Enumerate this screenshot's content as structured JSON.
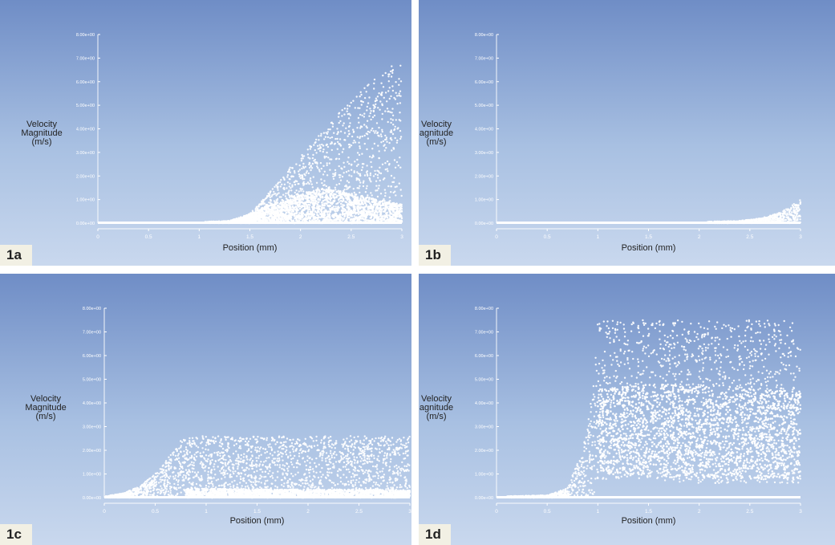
{
  "colors": {
    "background_top": "#6f8dc6",
    "background_bottom": "#c9d8ee",
    "points": "#ffffff",
    "label_box": "#f2f0e4"
  },
  "chart_data": [
    {
      "panel": "1a",
      "type": "scatter",
      "xlabel": "Position (mm)",
      "ylabel": [
        "Velocity",
        "Magnitude",
        "(m/s)"
      ],
      "xticks": [
        "0",
        "0.5",
        "1",
        "1.5",
        "2",
        "2.5",
        "3"
      ],
      "yticks": [
        "0.00e+00",
        "1.00e+00",
        "2.00e+00",
        "3.00e+00",
        "4.00e+00",
        "5.00e+00",
        "6.00e+00",
        "7.00e+00",
        "8.00e+00"
      ],
      "xlim": [
        0,
        3
      ],
      "ylim": [
        0,
        8
      ],
      "series_envelope": {
        "x": [
          0,
          1.0,
          1.3,
          1.5,
          1.75,
          2.0,
          2.25,
          2.5,
          2.75,
          2.95,
          3.0
        ],
        "upper": [
          0.05,
          0.05,
          0.1,
          0.4,
          1.6,
          2.9,
          4.1,
          5.2,
          6.2,
          6.9,
          6.9
        ],
        "lower": [
          0,
          0,
          0,
          0,
          0,
          0,
          0,
          0,
          0,
          0,
          0
        ]
      },
      "dense_band": {
        "x": [
          1.4,
          1.7,
          2.0,
          2.25,
          2.5,
          2.75,
          3.0
        ],
        "upper": [
          0.2,
          0.8,
          1.3,
          1.5,
          1.3,
          1.0,
          0.8
        ]
      }
    },
    {
      "panel": "1b",
      "type": "scatter",
      "xlabel": "Position (mm)",
      "ylabel": [
        "Velocity",
        "agnitude",
        "(m/s)"
      ],
      "xticks": [
        "0",
        "0.5",
        "1",
        "1.5",
        "2",
        "2.5",
        "3"
      ],
      "yticks": [
        "0.00e+00",
        "1.00e+00",
        "2.00e+00",
        "3.00e+00",
        "4.00e+00",
        "5.00e+00",
        "6.00e+00",
        "7.00e+00",
        "8.00e+00"
      ],
      "xlim": [
        0,
        3
      ],
      "ylim": [
        0,
        8
      ],
      "series_envelope": {
        "x": [
          0,
          2.0,
          2.4,
          2.6,
          2.8,
          2.95,
          3.0
        ],
        "upper": [
          0.05,
          0.05,
          0.1,
          0.2,
          0.45,
          0.85,
          1.0
        ],
        "lower": [
          0,
          0,
          0,
          0,
          0,
          0,
          0
        ]
      }
    },
    {
      "panel": "1c",
      "type": "scatter",
      "xlabel": "Position (mm)",
      "ylabel": [
        "Velocity",
        "Magnitude",
        "(m/s)"
      ],
      "xticks": [
        "0",
        "0.5",
        "1",
        "1.5",
        "2",
        "2.5",
        "3"
      ],
      "yticks": [
        "0.00e+00",
        "1.00e+00",
        "2.00e+00",
        "3.00e+00",
        "4.00e+00",
        "5.00e+00",
        "6.00e+00",
        "7.00e+00",
        "8.00e+00"
      ],
      "xlim": [
        0,
        3
      ],
      "ylim": [
        0,
        8
      ],
      "series_envelope": {
        "x": [
          0,
          0.2,
          0.35,
          0.5,
          0.65,
          0.75,
          0.8,
          1.5,
          2.5,
          3.0
        ],
        "upper": [
          0.05,
          0.2,
          0.5,
          1.0,
          1.8,
          2.4,
          2.6,
          2.6,
          2.6,
          2.6
        ],
        "lower": [
          0,
          0,
          0,
          0,
          0,
          0,
          0,
          0,
          0,
          0
        ]
      },
      "dense_band": {
        "x": [
          0.8,
          1.5,
          2.5,
          3.0
        ],
        "upper": [
          0.4,
          0.35,
          0.35,
          0.3
        ]
      }
    },
    {
      "panel": "1d",
      "type": "scatter",
      "xlabel": "Position (mm)",
      "ylabel": [
        "Velocity",
        "agnitude",
        "(m/s)"
      ],
      "xticks": [
        "0",
        "0.5",
        "1",
        "1.5",
        "2",
        "2.5",
        "3"
      ],
      "yticks": [
        "0.00e+00",
        "1.00e+00",
        "2.00e+00",
        "3.00e+00",
        "4.00e+00",
        "5.00e+00",
        "6.00e+00",
        "7.00e+00",
        "8.00e+00"
      ],
      "xlim": [
        0,
        3
      ],
      "ylim": [
        0,
        8
      ],
      "series_envelope": {
        "x": [
          0,
          0.5,
          0.7,
          0.85,
          0.95,
          1.0,
          2.0,
          3.0
        ],
        "upper": [
          0.05,
          0.1,
          0.4,
          2.0,
          4.5,
          7.5,
          7.5,
          7.5
        ],
        "lower": [
          0,
          0,
          0,
          0,
          0,
          0.8,
          0.6,
          0.6
        ]
      },
      "dense_band": {
        "x": [
          1.0,
          1.5,
          2.0,
          2.5,
          3.0
        ],
        "upper": [
          4.6,
          4.8,
          4.7,
          4.6,
          4.5
        ],
        "lower": [
          1.0,
          0.9,
          0.8,
          0.8,
          0.7
        ]
      }
    }
  ]
}
